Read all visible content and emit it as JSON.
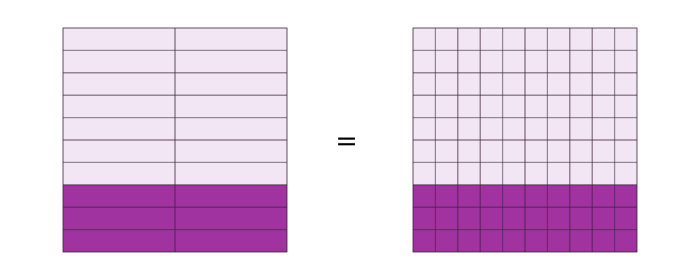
{
  "equation": {
    "symbol": "="
  },
  "left_grid": {
    "rows": 10,
    "cols": 2,
    "shaded_rows": 3
  },
  "right_grid": {
    "rows": 10,
    "cols": 10,
    "shaded_rows": 3
  },
  "colors": {
    "light_fill": "#f2e6f4",
    "shaded_fill": "#a133a1",
    "grid_stroke": "#3a1f3a",
    "background": "#ffffff"
  }
}
